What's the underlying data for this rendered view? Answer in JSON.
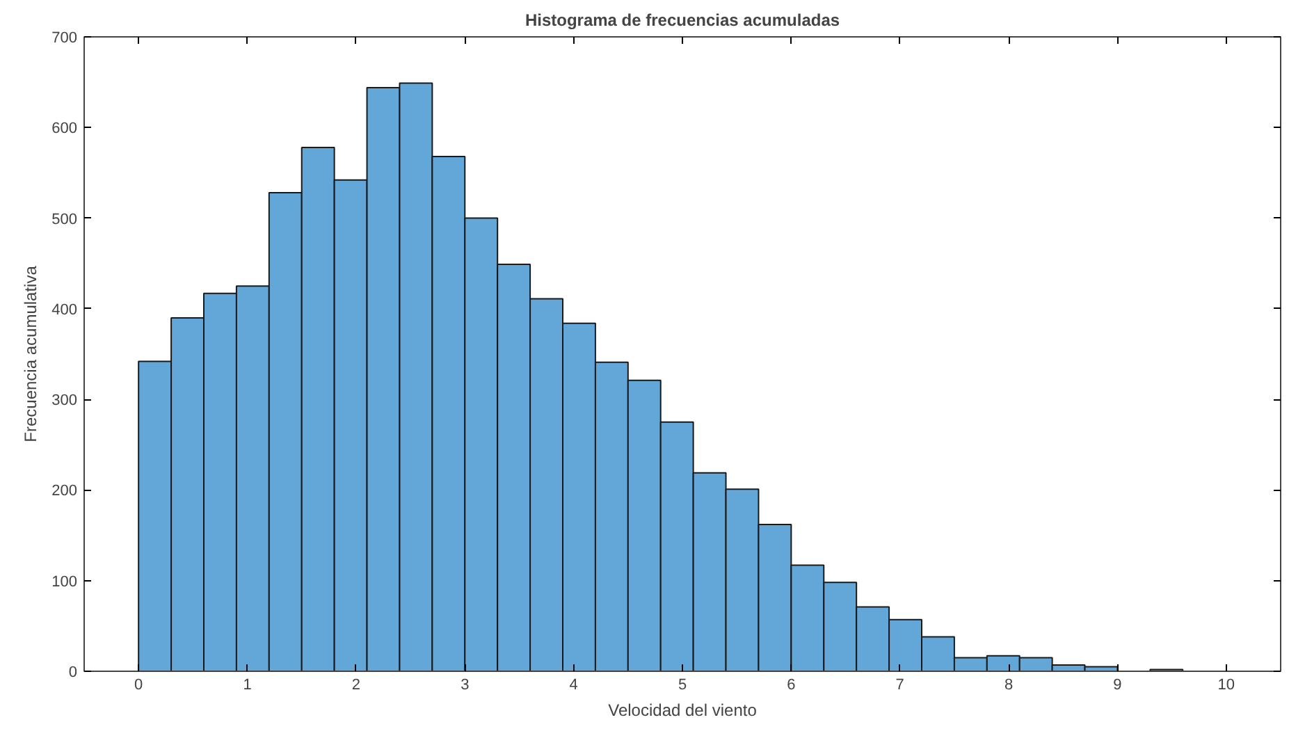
{
  "chart_data": {
    "type": "histogram",
    "title": "Histograma de frecuencias acumuladas",
    "xlabel": "Velocidad del viento",
    "ylabel": "Frecuencia acumulativa",
    "bins": [
      0,
      0.3,
      0.6,
      0.9,
      1.2,
      1.5,
      1.8,
      2.1,
      2.4,
      2.7,
      3.0,
      3.3,
      3.6,
      3.9,
      4.2,
      4.5,
      4.8,
      5.1,
      5.4,
      5.7,
      6.0,
      6.3,
      6.6,
      6.9,
      7.2,
      7.5,
      7.8,
      8.1,
      8.4,
      8.7,
      9.0,
      9.3,
      9.6
    ],
    "values": [
      342,
      390,
      417,
      425,
      528,
      578,
      542,
      644,
      649,
      568,
      500,
      449,
      411,
      384,
      341,
      321,
      275,
      219,
      201,
      162,
      117,
      98,
      71,
      57,
      38,
      15,
      17,
      15,
      7,
      5,
      0,
      2
    ],
    "color": "#62a7d8",
    "xlim": [
      -0.5,
      10.5
    ],
    "ylim": [
      0,
      700
    ],
    "xticks": [
      0,
      1,
      2,
      3,
      4,
      5,
      6,
      7,
      8,
      9,
      10
    ],
    "yticks": [
      0,
      100,
      200,
      300,
      400,
      500,
      600,
      700
    ],
    "grid": false
  }
}
